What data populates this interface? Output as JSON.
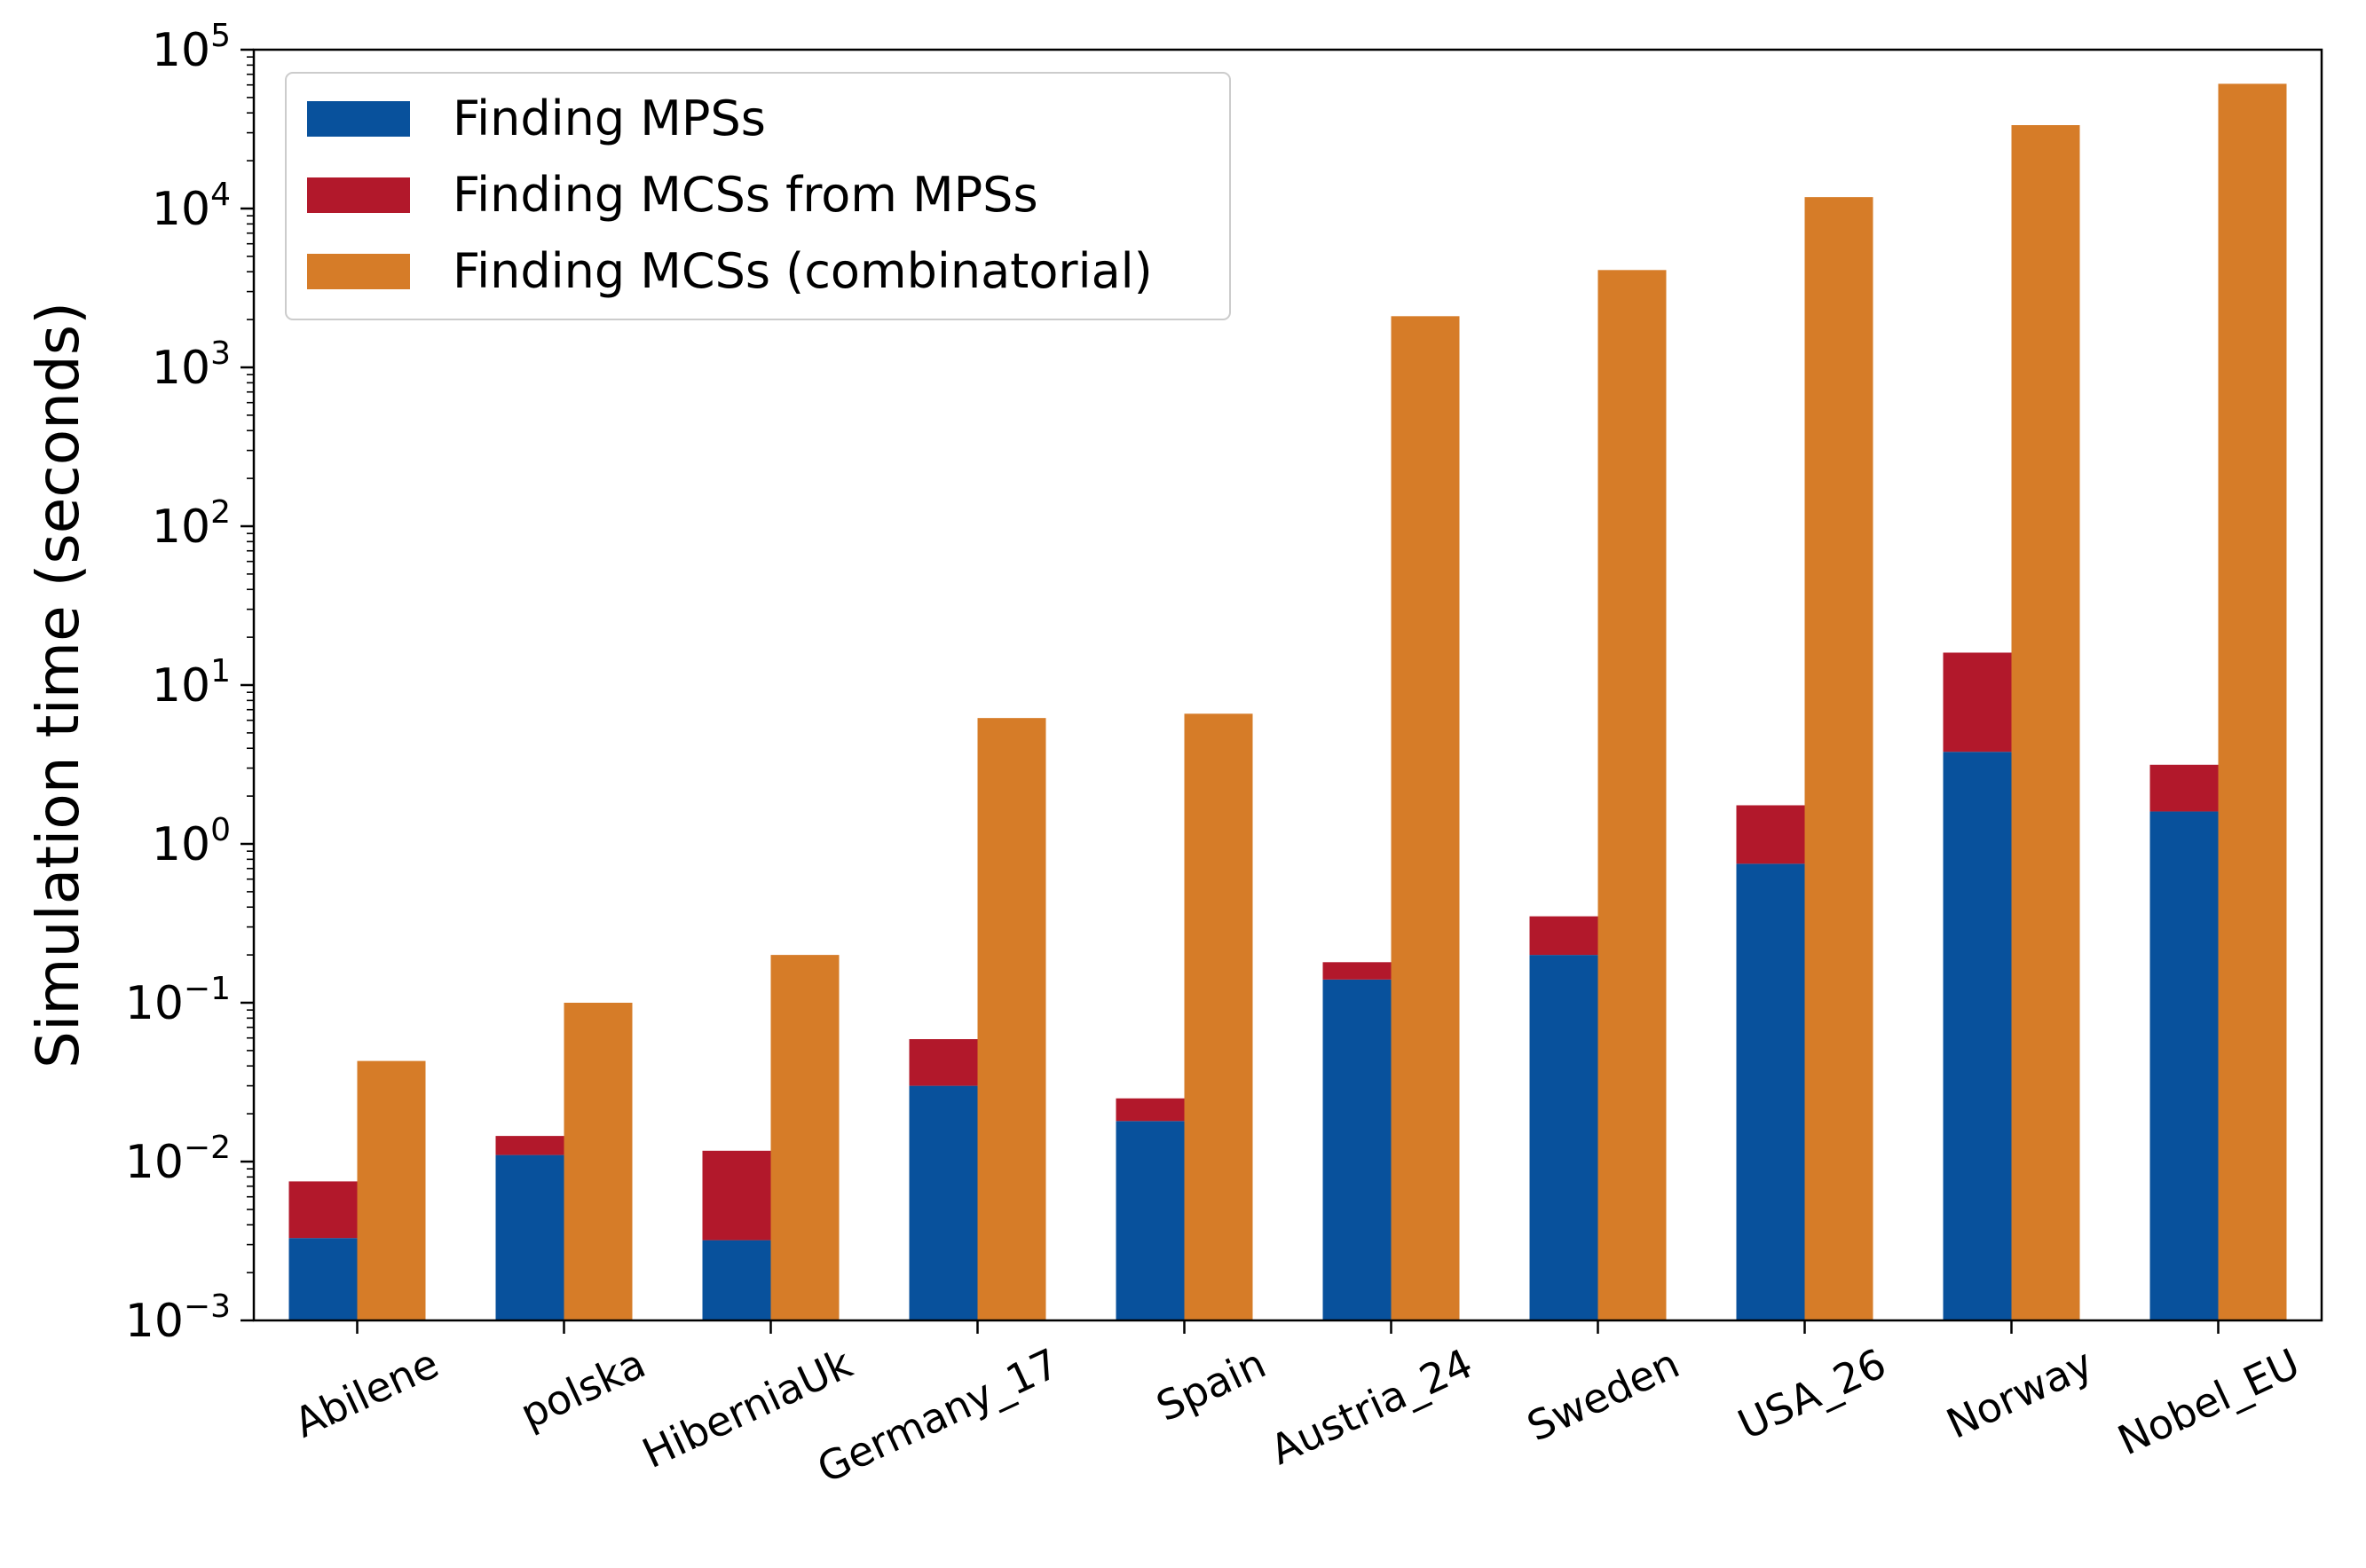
{
  "chart_data": {
    "type": "bar",
    "title": "",
    "xlabel": "",
    "ylabel": "Simulation time (seconds)",
    "yscale": "log",
    "ylim": [
      0.001,
      100000
    ],
    "ytick_base": "10",
    "yticks": [
      {
        "exp": "−3",
        "value": 0.001
      },
      {
        "exp": "−2",
        "value": 0.01
      },
      {
        "exp": "−1",
        "value": 0.1
      },
      {
        "exp": "0",
        "value": 1
      },
      {
        "exp": "1",
        "value": 10
      },
      {
        "exp": "2",
        "value": 100
      },
      {
        "exp": "3",
        "value": 1000
      },
      {
        "exp": "4",
        "value": 10000
      },
      {
        "exp": "5",
        "value": 100000
      }
    ],
    "categories": [
      "Abilene",
      "polska",
      "HiberniaUk",
      "Germany_17",
      "Spain",
      "Austria_24",
      "Sweden",
      "USA_26",
      "Norway",
      "Nobel_EU"
    ],
    "legend_position": "top-left",
    "series": [
      {
        "name": "Finding MPSs",
        "color": "#08519c",
        "stack": "left",
        "values": [
          0.0033,
          0.011,
          0.0032,
          0.03,
          0.018,
          0.14,
          0.2,
          0.75,
          3.8,
          1.6
        ]
      },
      {
        "name": "Finding MCSs from MPSs",
        "color": "#b2182b",
        "stack": "left",
        "values": [
          0.0042,
          0.0035,
          0.0085,
          0.029,
          0.007,
          0.04,
          0.15,
          1.0,
          12.2,
          1.55
        ]
      },
      {
        "name": "Finding MCSs (combinatorial)",
        "color": "#d67c28",
        "stack": "right",
        "values": [
          0.043,
          0.1,
          0.2,
          6.2,
          6.6,
          2100,
          4100,
          11800,
          33500,
          61000
        ]
      }
    ]
  }
}
